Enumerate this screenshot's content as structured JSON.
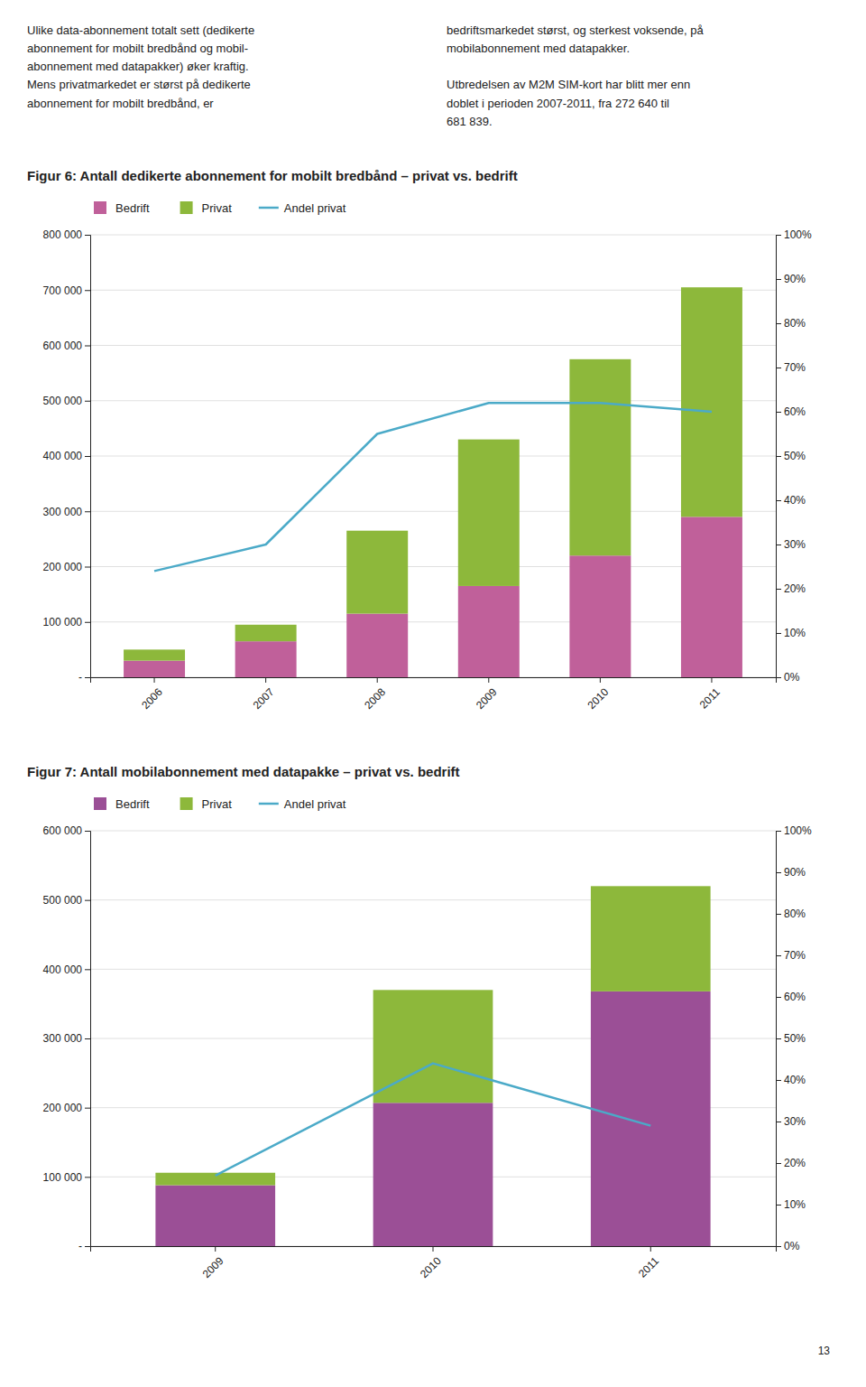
{
  "text_blocks": [
    "Ulike data-abonnement totalt sett (dedikerte\nabonnement for mobilt bredbånd og mobil-\nabonnement med datapakker) øker kraftig.\nMens privatmarkedet er størst på dedikerte\nabonnement for mobilt bredbånd, er",
    "bedriftsmarkedet størst, og sterkest voksende, på\nmobilabonnement med datapakker.\n\nUtbredelsen av M2M SIM-kort har blitt mer enn\ndoblet i perioden 2007-2011, fra 272 640 til\n681 839."
  ],
  "page_number": "13",
  "chart_data": [
    {
      "type": "bar",
      "title": "Figur 6: Antall dedikerte abonnement for mobilt bredbånd – privat vs. bedrift",
      "categories": [
        "2006",
        "2007",
        "2008",
        "2009",
        "2010",
        "2011"
      ],
      "series": [
        {
          "name": "Bedrift",
          "type": "bar",
          "color": "#c0609a",
          "values": [
            30000,
            65000,
            115000,
            165000,
            220000,
            290000
          ]
        },
        {
          "name": "Privat",
          "type": "bar",
          "color": "#8db83b",
          "values": [
            20000,
            30000,
            150000,
            265000,
            355000,
            415000
          ]
        },
        {
          "name": "Andel privat",
          "type": "line",
          "axis": "y2",
          "color": "#4baac8",
          "values": [
            0.24,
            0.3,
            0.55,
            0.62,
            0.62,
            0.6
          ]
        }
      ],
      "stacked": true,
      "ylim": [
        0,
        800000
      ],
      "yticks": [
        {
          "value": 0,
          "label": "-"
        },
        {
          "value": 100000,
          "label": "100 000"
        },
        {
          "value": 200000,
          "label": "200 000"
        },
        {
          "value": 300000,
          "label": "300 000"
        },
        {
          "value": 400000,
          "label": "400 000"
        },
        {
          "value": 500000,
          "label": "500 000"
        },
        {
          "value": 600000,
          "label": "600 000"
        },
        {
          "value": 700000,
          "label": "700 000"
        },
        {
          "value": 800000,
          "label": "800 000"
        }
      ],
      "y2lim": [
        0,
        1.0
      ],
      "y2ticks": [
        {
          "value": 0.0,
          "label": "0%"
        },
        {
          "value": 0.1,
          "label": "10%"
        },
        {
          "value": 0.2,
          "label": "20%"
        },
        {
          "value": 0.3,
          "label": "30%"
        },
        {
          "value": 0.4,
          "label": "40%"
        },
        {
          "value": 0.5,
          "label": "50%"
        },
        {
          "value": 0.6,
          "label": "60%"
        },
        {
          "value": 0.7,
          "label": "70%"
        },
        {
          "value": 0.8,
          "label": "80%"
        },
        {
          "value": 0.9,
          "label": "90%"
        },
        {
          "value": 1.0,
          "label": "100%"
        }
      ],
      "grid": true,
      "legend": "top"
    },
    {
      "type": "bar",
      "title": "Figur 7: Antall mobilabonnement med datapakke – privat vs. bedrift",
      "categories": [
        "2009",
        "2010",
        "2011"
      ],
      "series": [
        {
          "name": "Bedrift",
          "type": "bar",
          "color": "#9b4f96",
          "values": [
            88000,
            207000,
            368000
          ]
        },
        {
          "name": "Privat",
          "type": "bar",
          "color": "#8db83b",
          "values": [
            18000,
            163000,
            152000
          ]
        },
        {
          "name": "Andel privat",
          "type": "line",
          "axis": "y2",
          "color": "#4baac8",
          "values": [
            0.17,
            0.44,
            0.29
          ]
        }
      ],
      "stacked": true,
      "ylim": [
        0,
        600000
      ],
      "yticks": [
        {
          "value": 0,
          "label": "-"
        },
        {
          "value": 100000,
          "label": "100 000"
        },
        {
          "value": 200000,
          "label": "200 000"
        },
        {
          "value": 300000,
          "label": "300 000"
        },
        {
          "value": 400000,
          "label": "400 000"
        },
        {
          "value": 500000,
          "label": "500 000"
        },
        {
          "value": 600000,
          "label": "600 000"
        }
      ],
      "y2lim": [
        0,
        1.0
      ],
      "y2ticks": [
        {
          "value": 0.0,
          "label": "0%"
        },
        {
          "value": 0.1,
          "label": "10%"
        },
        {
          "value": 0.2,
          "label": "20%"
        },
        {
          "value": 0.3,
          "label": "30%"
        },
        {
          "value": 0.4,
          "label": "40%"
        },
        {
          "value": 0.5,
          "label": "50%"
        },
        {
          "value": 0.6,
          "label": "60%"
        },
        {
          "value": 0.7,
          "label": "70%"
        },
        {
          "value": 0.8,
          "label": "80%"
        },
        {
          "value": 0.9,
          "label": "90%"
        },
        {
          "value": 1.0,
          "label": "100%"
        }
      ],
      "grid": true,
      "legend": "top"
    }
  ]
}
